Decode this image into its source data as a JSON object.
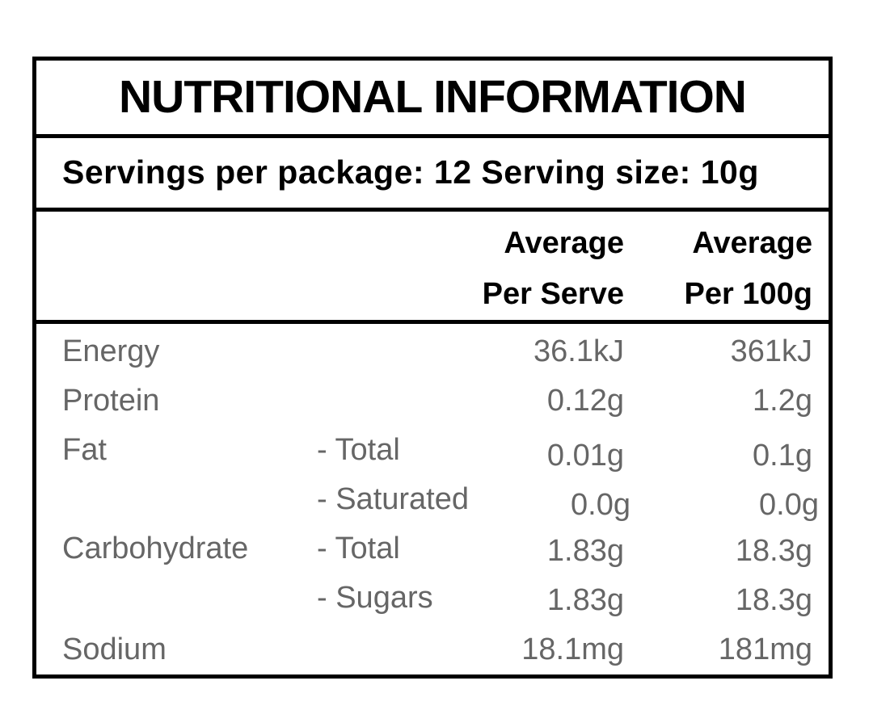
{
  "panel": {
    "title": "NUTRITIONAL INFORMATION",
    "servings_text": "Servings per package: 12 Serving size: 10g",
    "servings_per_package": "12",
    "serving_size": "10g",
    "columns": {
      "per_serve_line1": "Average",
      "per_serve_line2": "Per Serve",
      "per_100g_line1": "Average",
      "per_100g_line2": "Per 100g"
    },
    "rows": [
      {
        "name": "Energy",
        "sub": "",
        "per_serve": "36.1kJ",
        "per_100g": "361kJ"
      },
      {
        "name": "Protein",
        "sub": "",
        "per_serve": "0.12g",
        "per_100g": "1.2g"
      },
      {
        "name": "Fat",
        "sub": "- Total",
        "per_serve": "0.01g",
        "per_100g": "0.1g"
      },
      {
        "name": "",
        "sub": "- Saturated",
        "per_serve": "0.0g",
        "per_100g": "0.0g"
      },
      {
        "name": "Carbohydrate",
        "sub": "- Total",
        "per_serve": "1.83g",
        "per_100g": "18.3g"
      },
      {
        "name": "",
        "sub": "- Sugars",
        "per_serve": "1.83g",
        "per_100g": "18.3g"
      },
      {
        "name": "Sodium",
        "sub": "",
        "per_serve": "18.1mg",
        "per_100g": "181mg"
      }
    ],
    "colors": {
      "background": "#ffffff",
      "border": "#000000",
      "heading_text": "#000000",
      "data_text": "#666666"
    }
  }
}
